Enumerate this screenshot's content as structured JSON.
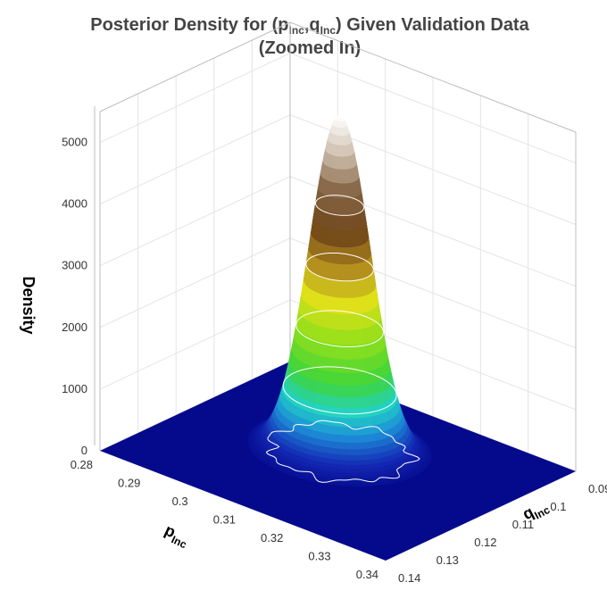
{
  "chart_data": {
    "type": "surface3d",
    "title_line1_prefix": "Posterior Density for (p",
    "title_sub1": "Inc",
    "title_comma": ",q",
    "title_sub2": "Inc",
    "title_line1_suffix": ") Given Validation Data",
    "title_line2": "(Zoomed In)",
    "xlabel": "p",
    "xlabel_sub": "Inc",
    "ylabel": "q",
    "ylabel_sub": "Inc",
    "zlabel": "Density",
    "x_ticks": [
      "0.28",
      "0.29",
      "0.3",
      "0.31",
      "0.32",
      "0.33",
      "0.34"
    ],
    "x_tick_values": [
      0.28,
      0.29,
      0.3,
      0.31,
      0.32,
      0.33,
      0.34
    ],
    "y_ticks": [
      "0.09",
      "0.1",
      "0.11",
      "0.12",
      "0.13",
      "0.14"
    ],
    "y_tick_values": [
      0.09,
      0.1,
      0.11,
      0.12,
      0.13,
      0.14
    ],
    "z_ticks": [
      "0",
      "1000",
      "2000",
      "3000",
      "4000",
      "5000"
    ],
    "z_tick_values": [
      0,
      1000,
      2000,
      3000,
      4000,
      5000
    ],
    "xlim": [
      0.28,
      0.34
    ],
    "ylim": [
      0.09,
      0.14
    ],
    "zlim": [
      0,
      5500
    ],
    "peak": {
      "x": 0.308,
      "y": 0.112,
      "z": 5450
    },
    "contour_levels": [
      400,
      1000,
      2000,
      3000,
      4000
    ],
    "colorscale": [
      "#050a8c",
      "#1a2fb8",
      "#1a8fd6",
      "#22d3c8",
      "#3fd63a",
      "#9fe01a",
      "#e0e01a",
      "#b08a1e",
      "#6e4418",
      "#8a6a4a",
      "#cfc0b0",
      "#ffffff"
    ]
  }
}
